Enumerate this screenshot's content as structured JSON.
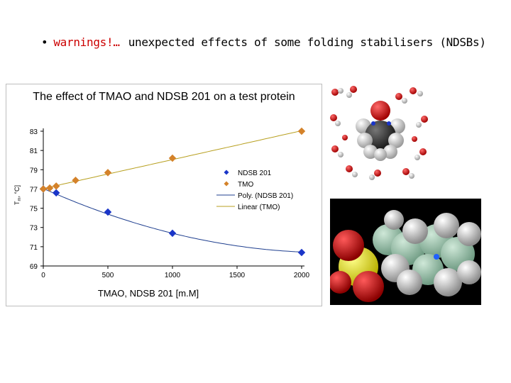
{
  "slide": {
    "bullet": "•",
    "warning": "warnings!…",
    "heading": "unexpected effects of some folding stabilisers (NDSBs)"
  },
  "images": [
    {
      "name": "tmao-water-molecular-model"
    },
    {
      "name": "ndsb201-space-filling-model"
    }
  ],
  "chart_data": {
    "type": "scatter",
    "title": "The effect of TMAO and NDSB 201 on a test protein",
    "xlabel": "TMAO, NDSB 201 [m.M]",
    "ylabel_main": "T",
    "ylabel_sub": "m",
    "ylabel_rest": ", °C]",
    "xlim": [
      0,
      2000
    ],
    "ylim": [
      69,
      83
    ],
    "xticks": [
      0,
      500,
      1000,
      1500,
      2000
    ],
    "yticks": [
      69,
      71,
      73,
      75,
      77,
      79,
      81,
      83
    ],
    "grid": false,
    "legend_position": "right",
    "series": [
      {
        "name": "NDSB 201",
        "marker": "diamond",
        "color": "#1a35c8",
        "x": [
          0,
          100,
          500,
          1000,
          2000
        ],
        "y": [
          77.0,
          76.6,
          74.6,
          72.4,
          70.4
        ]
      },
      {
        "name": "TMO",
        "marker": "diamond",
        "color": "#d4822a",
        "x": [
          0,
          50,
          100,
          250,
          500,
          1000,
          2000
        ],
        "y": [
          77.0,
          77.1,
          77.3,
          77.9,
          78.7,
          80.2,
          83.0
        ]
      }
    ],
    "fits": [
      {
        "name": "Poly. (NDSB 201)",
        "kind": "poly",
        "color": "#1f3f8f",
        "coef": [
          77.05,
          -0.006,
          1.35e-06
        ]
      },
      {
        "name": "Linear (TMO)",
        "kind": "linear",
        "color": "#b8a020",
        "coef": [
          77.05,
          0.003
        ]
      }
    ]
  }
}
